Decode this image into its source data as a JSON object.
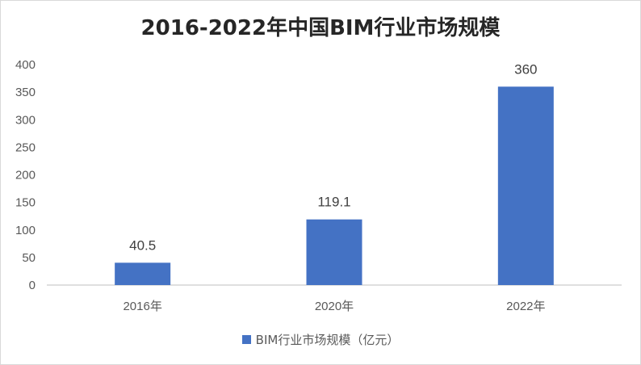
{
  "chart_data": {
    "type": "bar",
    "title": "2016-2022年中国BIM行业市场规模",
    "xlabel": "",
    "ylabel": "",
    "categories": [
      "2016年",
      "2020年",
      "2022年"
    ],
    "series": [
      {
        "name": "BIM行业市场规模（亿元）",
        "values": [
          40.5,
          119.1,
          360
        ],
        "labels": [
          "40.5",
          "119.1",
          "360"
        ]
      }
    ],
    "ylim": [
      0,
      400
    ],
    "yticks": [
      0,
      50,
      100,
      150,
      200,
      250,
      300,
      350,
      400
    ],
    "grid": false,
    "legend": "bottom",
    "colors": {
      "bar": "#4472c4",
      "axis": "#bfbfbf"
    }
  }
}
